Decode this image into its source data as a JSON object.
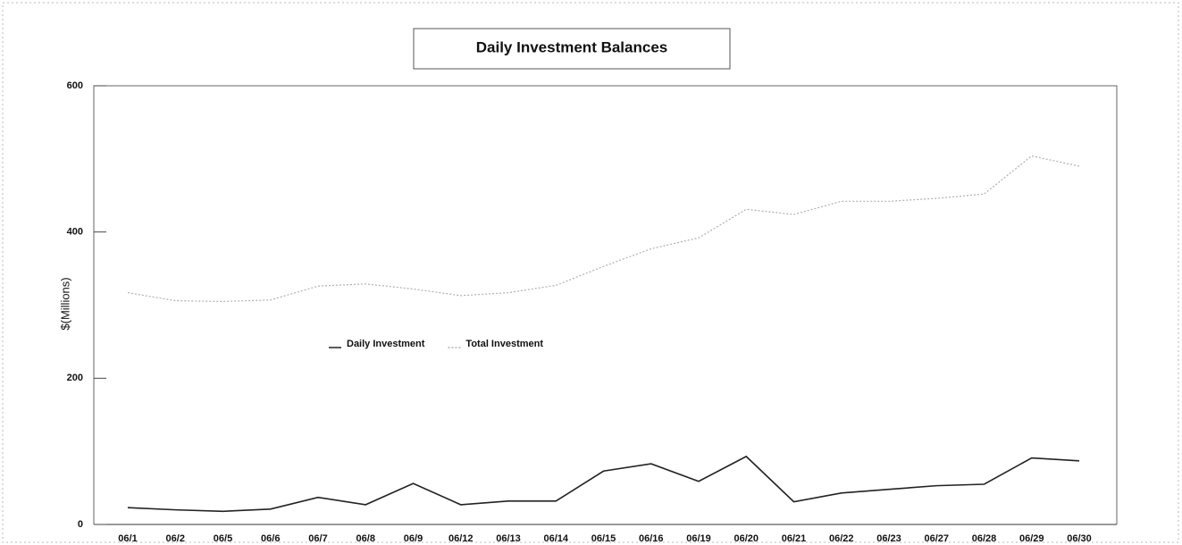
{
  "chart_data": {
    "type": "line",
    "title": "Daily Investment Balances",
    "y_label": "$(Millions)",
    "categories": [
      "06/1",
      "06/2",
      "06/5",
      "06/6",
      "06/7",
      "06/8",
      "06/9",
      "06/12",
      "06/13",
      "06/14",
      "06/15",
      "06/16",
      "06/19",
      "06/20",
      "06/21",
      "06/22",
      "06/23",
      "06/27",
      "06/28",
      "06/29",
      "06/30"
    ],
    "series": [
      {
        "name": "Daily Investment",
        "color": "#222222",
        "dash": false,
        "values": [
          23,
          20,
          18,
          21,
          37,
          27,
          56,
          27,
          32,
          32,
          73,
          83,
          59,
          93,
          31,
          43,
          48,
          53,
          55,
          91,
          87
        ]
      },
      {
        "name": "Total Investment",
        "color": "#b0b0b0",
        "dash": true,
        "values": [
          317,
          306,
          305,
          307,
          326,
          329,
          322,
          313,
          317,
          327,
          353,
          377,
          392,
          431,
          424,
          442,
          442,
          446,
          452,
          504,
          490
        ]
      }
    ],
    "ylim": [
      0,
      600
    ],
    "yticks": [
      0,
      200,
      400,
      600
    ],
    "legend": "center-left"
  }
}
